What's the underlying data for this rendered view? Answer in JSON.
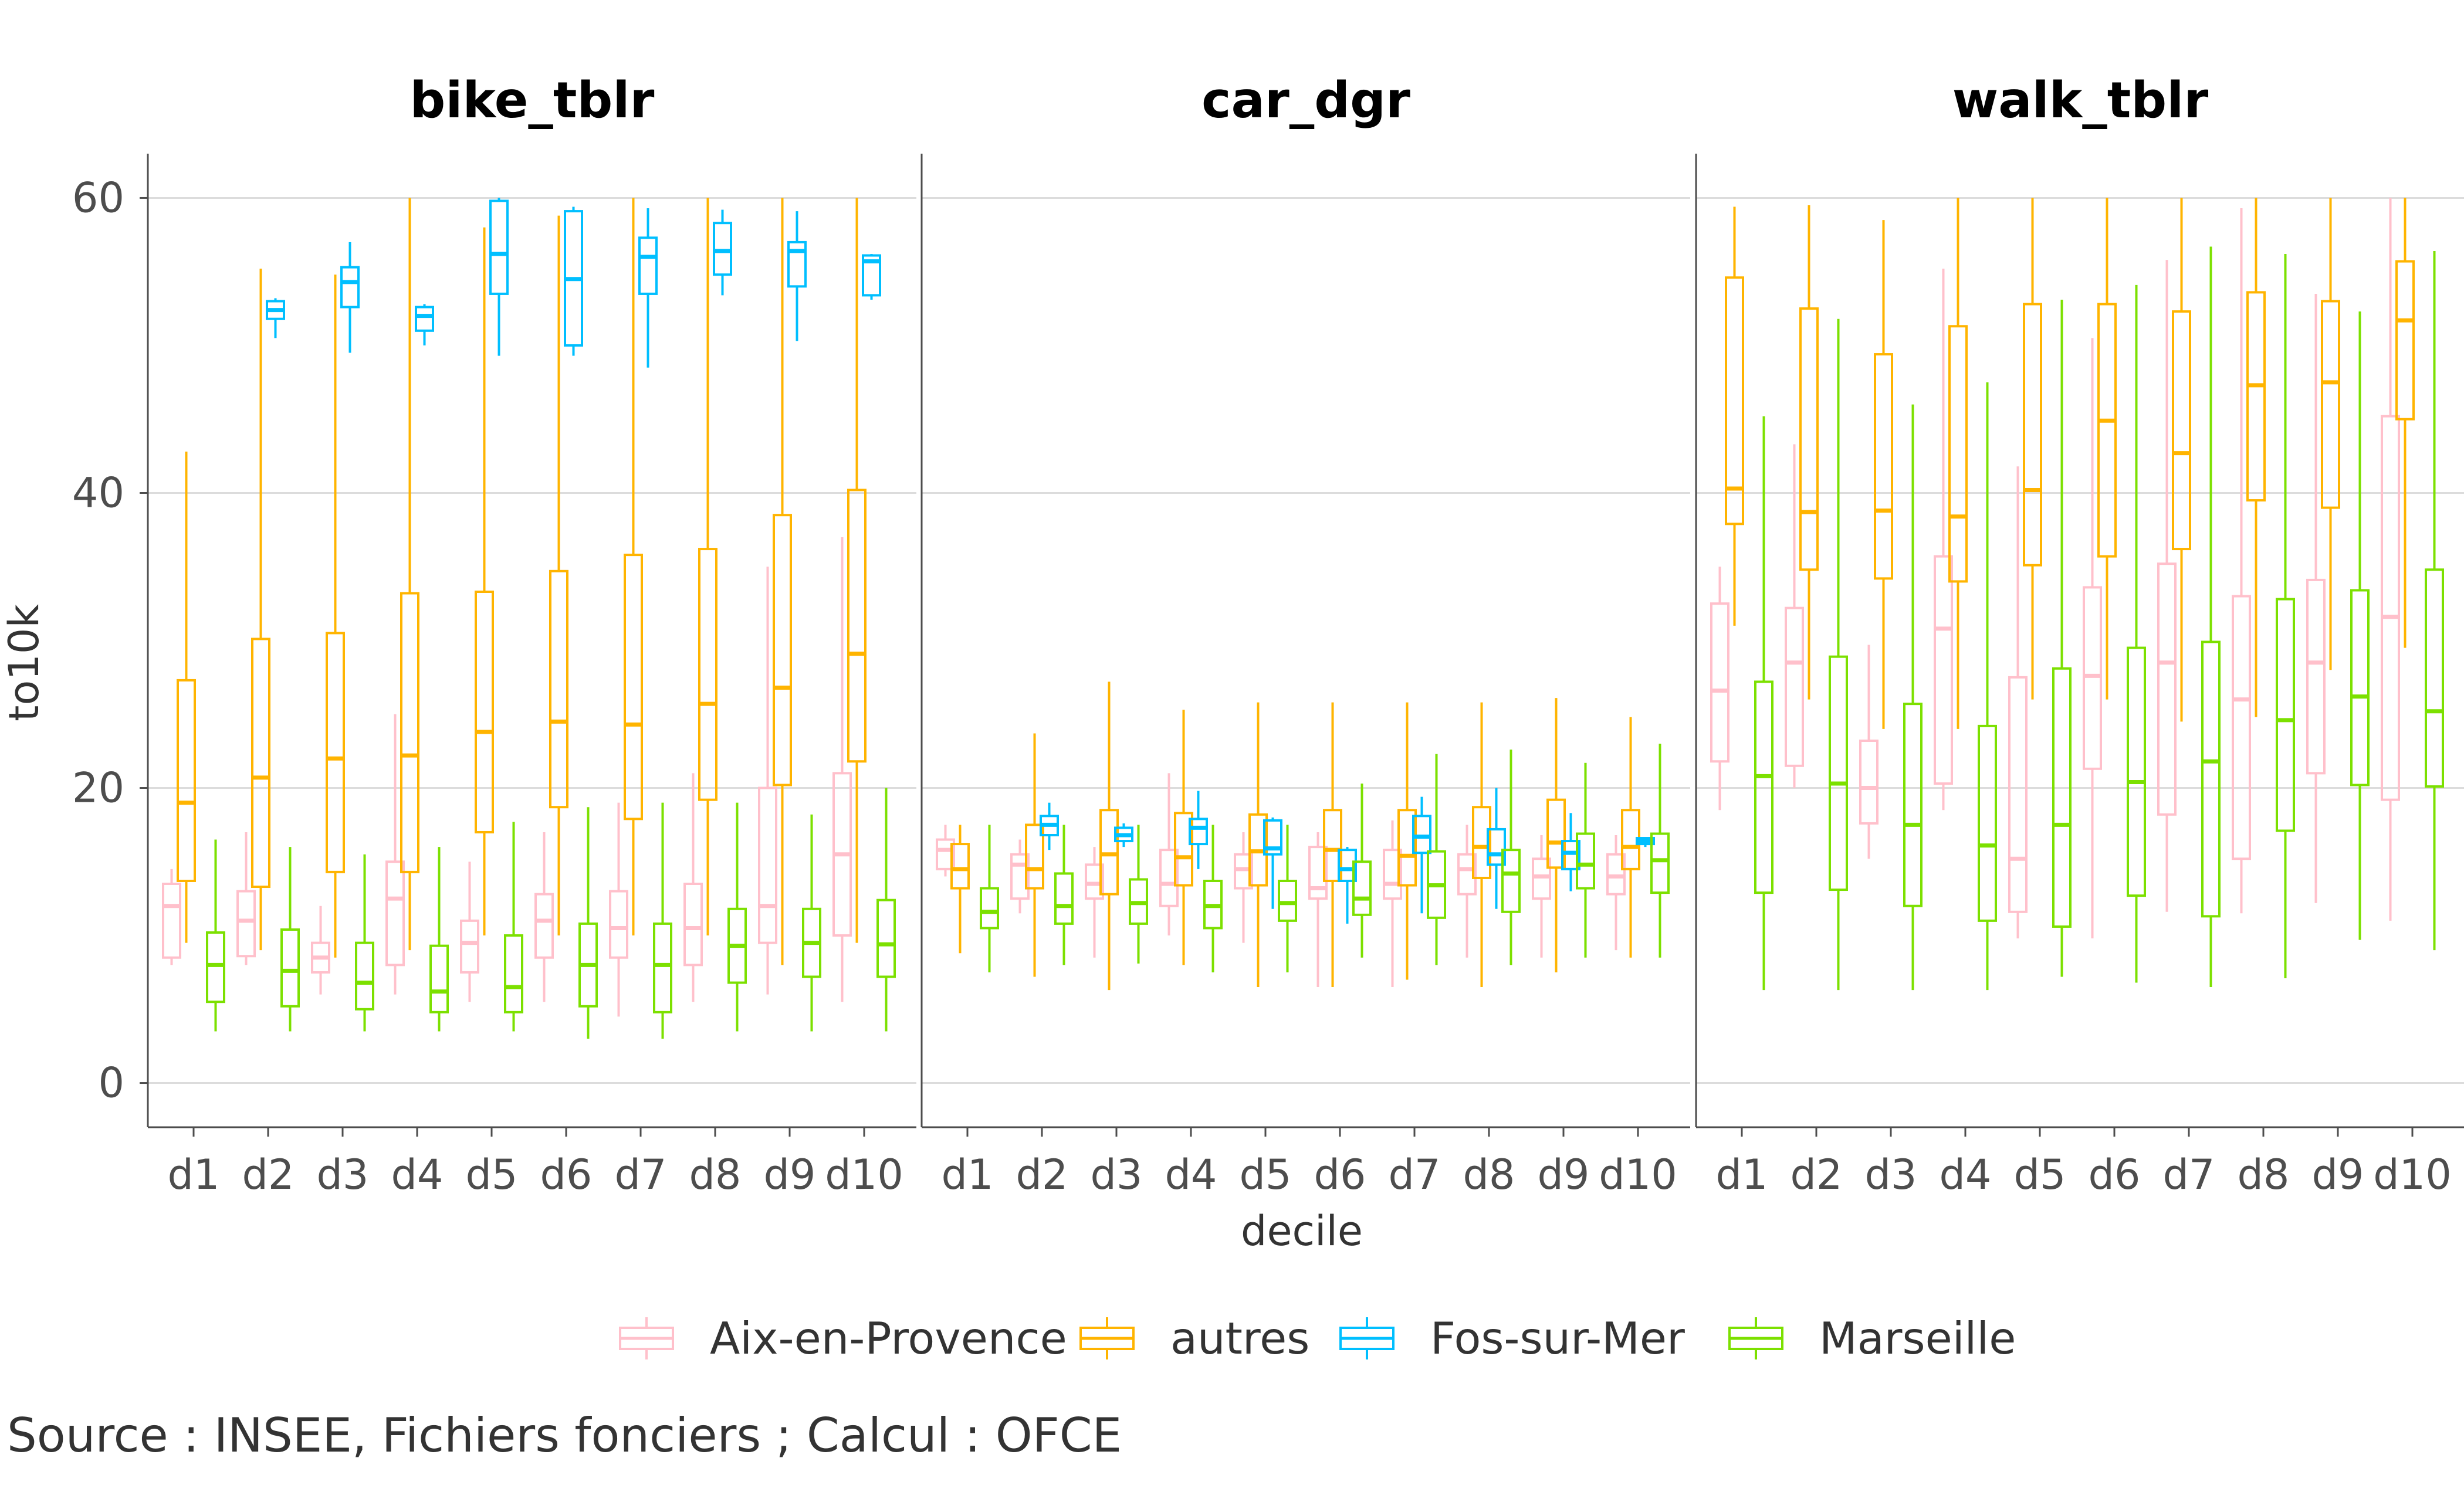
{
  "chart_data": {
    "type": "boxplot",
    "xlabel": "decile",
    "ylabel": "to10k",
    "ylim": [
      -3,
      63
    ],
    "yticks": [
      0,
      20,
      40,
      60
    ],
    "grid": true,
    "legend_position": "bottom",
    "caption": "Source : INSEE, Fichiers fonciers ; Calcul : OFCE",
    "categories": [
      "d1",
      "d2",
      "d3",
      "d4",
      "d5",
      "d6",
      "d7",
      "d8",
      "d9",
      "d10"
    ],
    "series": [
      {
        "name": "Aix-en-Provence",
        "color": "#FFC0CB"
      },
      {
        "name": "autres",
        "color": "#FFB400"
      },
      {
        "name": "Fos-sur-Mer",
        "color": "#00BFFF"
      },
      {
        "name": "Marseille",
        "color": "#7CE000"
      }
    ],
    "panels": [
      {
        "title": "bike_tblr",
        "boxes": {
          "Aix-en-Provence": [
            [
              8,
              8.5,
              12,
              13.5,
              14.5
            ],
            [
              8,
              8.6,
              11,
              13,
              17
            ],
            [
              6,
              7.5,
              8.5,
              9.5,
              12
            ],
            [
              6,
              8,
              12.5,
              15,
              25
            ],
            [
              5.5,
              7.5,
              9.5,
              11,
              15
            ],
            [
              5.5,
              8.5,
              11,
              12.8,
              17
            ],
            [
              4.5,
              8.5,
              10.5,
              13,
              19
            ],
            [
              5.5,
              8,
              10.5,
              13.5,
              21
            ],
            [
              6,
              9.5,
              12,
              20,
              35
            ],
            [
              5.5,
              10,
              15.5,
              21,
              37
            ]
          ],
          "autres": [
            [
              9.5,
              13.7,
              19,
              27.3,
              42.8
            ],
            [
              9,
              13.3,
              20.7,
              30.1,
              55.2
            ],
            [
              8.5,
              14.3,
              22,
              30.5,
              54.8
            ],
            [
              9,
              14.3,
              22.2,
              33.2,
              60
            ],
            [
              10,
              17,
              23.8,
              33.3,
              58
            ],
            [
              10,
              18.7,
              24.5,
              34.7,
              58.8
            ],
            [
              10,
              17.9,
              24.3,
              35.8,
              60
            ],
            [
              10,
              19.2,
              25.7,
              36.2,
              60
            ],
            [
              8,
              20.2,
              26.8,
              38.5,
              60
            ],
            [
              9.5,
              21.8,
              29.1,
              40.2,
              60
            ]
          ],
          "Fos-sur-Mer": [
            [
              null,
              null,
              null,
              null,
              null
            ],
            [
              50.5,
              51.8,
              52.4,
              53.0,
              53.2
            ],
            [
              49.5,
              52.6,
              54.3,
              55.3,
              57
            ],
            [
              50,
              51.0,
              52.0,
              52.6,
              52.8
            ],
            [
              49.3,
              53.5,
              56.2,
              59.8,
              60
            ],
            [
              49.3,
              50.0,
              54.5,
              59.1,
              59.4
            ],
            [
              48.5,
              53.5,
              56.0,
              57.3,
              59.3
            ],
            [
              53.4,
              54.8,
              56.4,
              58.3,
              59.2
            ],
            [
              50.3,
              54.0,
              56.4,
              57.0,
              59.1
            ],
            [
              53.1,
              53.4,
              55.7,
              56.1,
              56.2
            ]
          ],
          "Marseille": [
            [
              3.5,
              5.5,
              8,
              10.2,
              16.5
            ],
            [
              3.5,
              5.2,
              7.6,
              10.4,
              16
            ],
            [
              3.5,
              5,
              6.8,
              9.5,
              15.5
            ],
            [
              3.5,
              4.8,
              6.2,
              9.3,
              16
            ],
            [
              3.5,
              4.8,
              6.5,
              10,
              17.7
            ],
            [
              3,
              5.2,
              8,
              10.8,
              18.7
            ],
            [
              3,
              4.8,
              8,
              10.8,
              19
            ],
            [
              3.5,
              6.8,
              9.3,
              11.8,
              19
            ],
            [
              3.5,
              7.2,
              9.5,
              11.8,
              18.2
            ],
            [
              3.5,
              7.2,
              9.4,
              12.4,
              20
            ]
          ]
        }
      },
      {
        "title": "car_dgr",
        "boxes": {
          "Aix-en-Provence": [
            [
              14,
              14.5,
              15.8,
              16.5,
              17.5
            ],
            [
              11.5,
              12.5,
              14.8,
              15.5,
              16.5
            ],
            [
              8.5,
              12.5,
              13.5,
              14.8,
              16
            ],
            [
              10,
              12,
              13.5,
              15.8,
              21
            ],
            [
              9.5,
              13.2,
              14.5,
              15.5,
              17
            ],
            [
              6.5,
              12.5,
              13.2,
              16,
              17
            ],
            [
              6.5,
              12.5,
              13.5,
              15.8,
              17.8
            ],
            [
              8.5,
              12.8,
              14.5,
              15.5,
              17.5
            ],
            [
              8.5,
              12.5,
              14,
              15.2,
              16.8
            ],
            [
              9,
              12.8,
              14,
              15.5,
              16.8
            ]
          ],
          "autres": [
            [
              8.8,
              13.2,
              14.5,
              16.2,
              17.5
            ],
            [
              7.2,
              13.2,
              14.5,
              17.5,
              23.7
            ],
            [
              6.3,
              12.8,
              15.5,
              18.5,
              27.2
            ],
            [
              8,
              13.4,
              15.3,
              18.3,
              25.3
            ],
            [
              6.5,
              13.4,
              15.7,
              18.2,
              25.8
            ],
            [
              6.5,
              13.7,
              15.8,
              18.5,
              25.8
            ],
            [
              7,
              13.4,
              15.4,
              18.5,
              25.8
            ],
            [
              6.5,
              13.9,
              16,
              18.7,
              25.8
            ],
            [
              7.5,
              14.6,
              16.3,
              19.2,
              26.1
            ],
            [
              8.5,
              14.5,
              16,
              18.5,
              24.8
            ]
          ],
          "Fos-sur-Mer": [
            [
              null,
              null,
              null,
              null,
              null
            ],
            [
              15.8,
              16.8,
              17.5,
              18.1,
              19
            ],
            [
              16,
              16.4,
              16.8,
              17.3,
              17.6
            ],
            [
              14.5,
              16.2,
              17.3,
              17.9,
              19.8
            ],
            [
              11.8,
              15.5,
              15.9,
              17.8,
              18
            ],
            [
              10.8,
              13.7,
              14.5,
              15.8,
              16
            ],
            [
              11.5,
              15.6,
              16.7,
              18.1,
              19.4
            ],
            [
              11.8,
              14.8,
              15.5,
              17.2,
              20
            ],
            [
              13,
              14.5,
              15.6,
              16.4,
              18.3
            ],
            [
              16,
              16.2,
              16.4,
              16.6,
              16.6
            ]
          ],
          "Marseille": [
            [
              7.5,
              10.5,
              11.6,
              13.2,
              17.5
            ],
            [
              8,
              10.8,
              12,
              14.2,
              17.5
            ],
            [
              8.1,
              10.8,
              12.2,
              13.8,
              17.5
            ],
            [
              7.5,
              10.5,
              12,
              13.7,
              17.5
            ],
            [
              7.5,
              11,
              12.2,
              13.7,
              17.5
            ],
            [
              8.5,
              11.4,
              12.5,
              15,
              20.3
            ],
            [
              8,
              11.2,
              13.4,
              15.7,
              22.3
            ],
            [
              8,
              11.6,
              14.2,
              15.8,
              22.6
            ],
            [
              8.5,
              13.2,
              14.8,
              16.9,
              21.7
            ],
            [
              8.5,
              12.9,
              15.1,
              16.9,
              23
            ]
          ]
        }
      },
      {
        "title": "walk_tblr",
        "boxes": {
          "Aix-en-Provence": [
            [
              18.5,
              21.8,
              26.6,
              32.5,
              35
            ],
            [
              20,
              21.5,
              28.5,
              32.2,
              43.3
            ],
            [
              15.2,
              17.6,
              20,
              23.2,
              29.7
            ],
            [
              18.5,
              20.3,
              30.8,
              35.7,
              55.2
            ],
            [
              9.8,
              11.6,
              15.2,
              27.5,
              41.8
            ],
            [
              9.8,
              21.3,
              27.6,
              33.6,
              50.5
            ],
            [
              11.6,
              18.2,
              28.5,
              35.2,
              55.8
            ],
            [
              11.5,
              15.2,
              26,
              33,
              59.3
            ],
            [
              12.2,
              21,
              28.5,
              34.1,
              53.5
            ],
            [
              11,
              19.2,
              31.6,
              45.2,
              60
            ]
          ],
          "autres": [
            [
              31,
              37.9,
              40.3,
              54.6,
              59.4
            ],
            [
              26,
              34.8,
              38.7,
              52.5,
              59.5
            ],
            [
              24,
              34.2,
              38.8,
              49.4,
              58.5
            ],
            [
              24,
              34,
              38.4,
              51.3,
              60
            ],
            [
              26,
              35.1,
              40.2,
              52.8,
              60
            ],
            [
              26,
              35.7,
              44.9,
              52.8,
              60
            ],
            [
              24.5,
              36.2,
              42.7,
              52.3,
              60
            ],
            [
              24.8,
              39.5,
              47.3,
              53.6,
              60
            ],
            [
              28,
              39,
              47.5,
              53,
              60
            ],
            [
              29.5,
              45,
              51.7,
              55.7,
              60
            ]
          ],
          "Fos-sur-Mer": [
            [
              null,
              null,
              null,
              null,
              null
            ],
            [
              null,
              null,
              null,
              null,
              null
            ],
            [
              null,
              null,
              null,
              null,
              null
            ],
            [
              null,
              null,
              null,
              null,
              null
            ],
            [
              null,
              null,
              null,
              null,
              null
            ],
            [
              null,
              null,
              null,
              null,
              null
            ],
            [
              null,
              null,
              null,
              null,
              null
            ],
            [
              null,
              null,
              null,
              null,
              null
            ],
            [
              null,
              null,
              null,
              null,
              null
            ],
            [
              null,
              null,
              null,
              null,
              null
            ]
          ],
          "Marseille": [
            [
              6.3,
              12.9,
              20.8,
              27.2,
              45.2
            ],
            [
              6.3,
              13.1,
              20.3,
              28.9,
              51.8
            ],
            [
              6.3,
              12,
              17.5,
              25.7,
              46
            ],
            [
              6.3,
              11,
              16.1,
              24.2,
              47.5
            ],
            [
              7.2,
              10.6,
              17.5,
              28.1,
              53.1
            ],
            [
              6.8,
              12.7,
              20.4,
              29.5,
              54.1
            ],
            [
              6.5,
              11.3,
              21.8,
              29.9,
              56.7
            ],
            [
              7.1,
              17.1,
              24.6,
              32.8,
              56.2
            ],
            [
              9.7,
              20.2,
              26.2,
              33.4,
              52.3
            ],
            [
              9,
              20.1,
              25.2,
              34.8,
              56.4
            ]
          ]
        }
      }
    ]
  }
}
